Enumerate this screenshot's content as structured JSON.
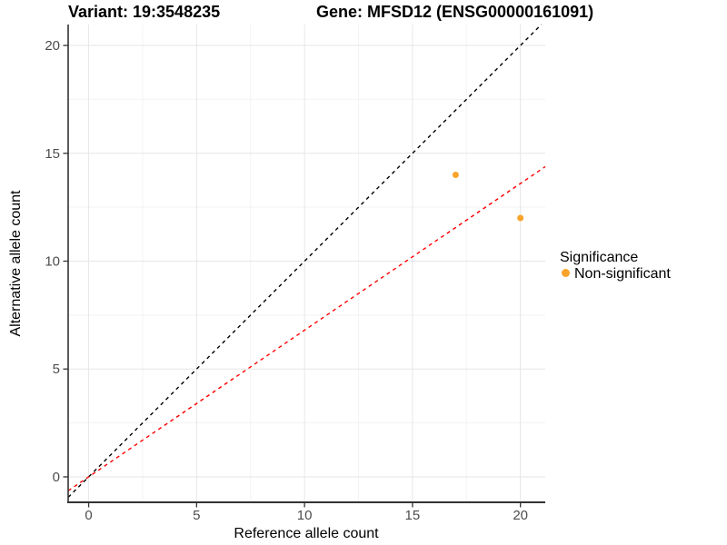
{
  "chart_data": {
    "type": "scatter",
    "title_left": "Variant: 19:3548235",
    "title_right": "Gene: MFSD12 (ENSG00000161091)",
    "xlabel": "Reference allele count",
    "ylabel": "Alternative allele count",
    "xlim": [
      -0.95,
      21.15
    ],
    "ylim": [
      -1.18,
      20.97
    ],
    "xticks": [
      0,
      5,
      10,
      15,
      20
    ],
    "yticks": [
      0,
      5,
      10,
      15,
      20
    ],
    "x_tick_labels": [
      "0",
      "5",
      "10",
      "15",
      "20"
    ],
    "y_tick_labels": [
      "0",
      "5",
      "10",
      "15",
      "20"
    ],
    "minor_xticks": [
      2.5,
      7.5,
      12.5,
      17.5
    ],
    "minor_yticks": [
      2.5,
      7.5,
      12.5,
      17.5
    ],
    "grid": "on",
    "legend_position": "right",
    "series": [
      {
        "name": "Non-significant",
        "color": "#F9A32B",
        "points": [
          {
            "x": 17,
            "y": 14
          },
          {
            "x": 20,
            "y": 12
          }
        ]
      }
    ],
    "reference_lines": [
      {
        "name": "identity-line",
        "slope": 1,
        "intercept": 0,
        "color": "#000000",
        "style": "dashed"
      },
      {
        "name": "expected-ratio-line",
        "slope": 0.68,
        "intercept": 0,
        "color": "#FF0000",
        "style": "dashed"
      }
    ],
    "legend": {
      "title": "Significance",
      "items": [
        {
          "label": "Non-significant",
          "color": "#F9A32B"
        }
      ]
    },
    "colors": {
      "point": "#F9A32B",
      "grid_major": "#E6E6E6",
      "grid_minor": "#F3F3F3",
      "axis_line": "#333333",
      "tick_mark": "#333333",
      "tick_label": "#4D4D4D"
    }
  }
}
